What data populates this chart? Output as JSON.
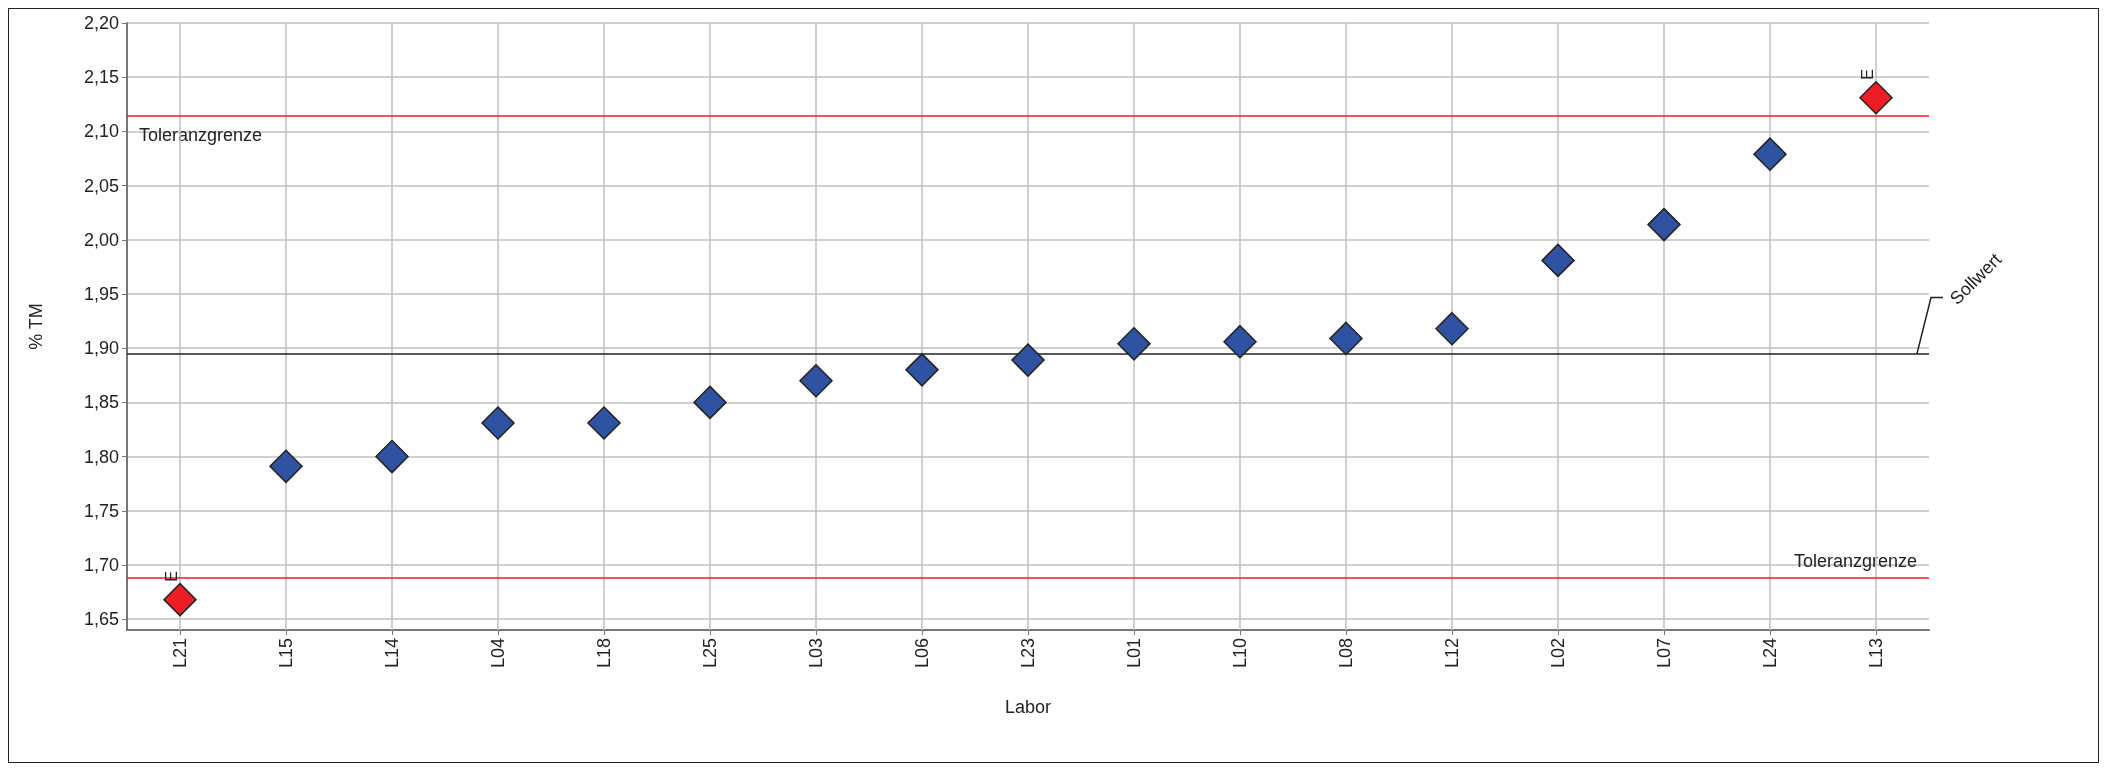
{
  "chart_data": {
    "type": "scatter",
    "xlabel": "Labor",
    "ylabel": "% TM",
    "categories": [
      "L21",
      "L15",
      "L14",
      "L04",
      "L18",
      "L25",
      "L03",
      "L06",
      "L23",
      "L01",
      "L10",
      "L08",
      "L12",
      "L02",
      "L07",
      "L24",
      "L13"
    ],
    "values": [
      1.668,
      1.791,
      1.8,
      1.831,
      1.831,
      1.85,
      1.87,
      1.88,
      1.889,
      1.904,
      1.906,
      1.909,
      1.918,
      1.981,
      2.014,
      2.079,
      2.131
    ],
    "colors": [
      "#ee1c25",
      "#3052a3",
      "#3052a3",
      "#3052a3",
      "#3052a3",
      "#3052a3",
      "#3052a3",
      "#3052a3",
      "#3052a3",
      "#3052a3",
      "#3052a3",
      "#3052a3",
      "#3052a3",
      "#3052a3",
      "#3052a3",
      "#3052a3",
      "#ee1c25"
    ],
    "marker": "diamond",
    "ylim": [
      1.64,
      2.2
    ],
    "yticks": [
      {
        "value": 1.65,
        "label": "1,65"
      },
      {
        "value": 1.7,
        "label": "1,70"
      },
      {
        "value": 1.75,
        "label": "1,75"
      },
      {
        "value": 1.8,
        "label": "1,80"
      },
      {
        "value": 1.85,
        "label": "1,85"
      },
      {
        "value": 1.9,
        "label": "1,90"
      },
      {
        "value": 1.95,
        "label": "1,95"
      },
      {
        "value": 2.0,
        "label": "2,00"
      },
      {
        "value": 2.05,
        "label": "2,05"
      },
      {
        "value": 2.1,
        "label": "2,10"
      },
      {
        "value": 2.15,
        "label": "2,15"
      },
      {
        "value": 2.2,
        "label": "2,20"
      }
    ],
    "grid": true,
    "ref_lines": [
      {
        "axis": "y",
        "value": 2.114,
        "label": "Toleranzgrenze",
        "color": "#ee1c25"
      },
      {
        "axis": "y",
        "value": 1.895,
        "label": "Sollwert",
        "color": "#222222"
      },
      {
        "axis": "y",
        "value": 1.688,
        "label": "Toleranzgrenze",
        "color": "#ee1c25"
      }
    ],
    "annotations": [
      {
        "text": "E",
        "x": "L21",
        "y": 1.668
      },
      {
        "text": "E",
        "x": "L13",
        "y": 2.131
      }
    ]
  }
}
